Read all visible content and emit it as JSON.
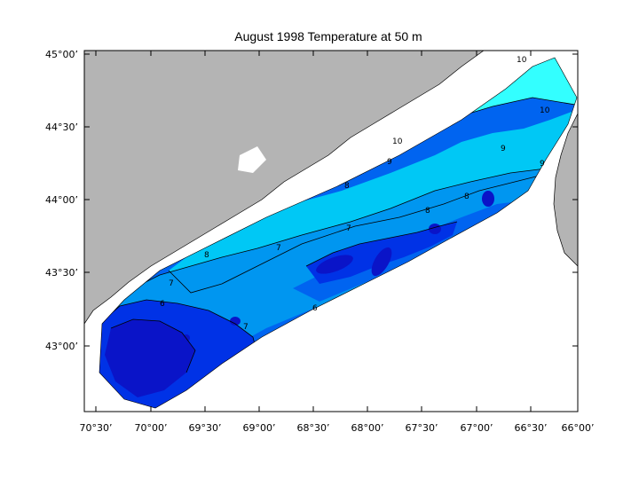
{
  "title": "August 1998  Temperature at 50 m",
  "y_axis_labels": [
    "45°00’",
    "44°30’",
    "44°00’",
    "43°30’",
    "43°00’"
  ],
  "x_axis_labels": [
    "70°30’",
    "70°00’",
    "69°30’",
    "69°00’",
    "68°30’",
    "68°00’",
    "67°30’",
    "67°00’",
    "66°30’",
    "66°00’"
  ],
  "contour_labels": [
    "10",
    "10",
    "9",
    "9",
    "8",
    "8",
    "8",
    "8",
    "7",
    "7",
    "7",
    "6",
    "6",
    "7",
    "9",
    "10"
  ],
  "colors": {
    "land": "#b4b4b4",
    "frame": "#000000",
    "level_10": "#33ffff",
    "level_9": "#00c8f5",
    "level_8": "#0096f0",
    "level_7": "#0064f0",
    "level_6": "#0032e6",
    "level_5": "#0a14c8"
  }
}
